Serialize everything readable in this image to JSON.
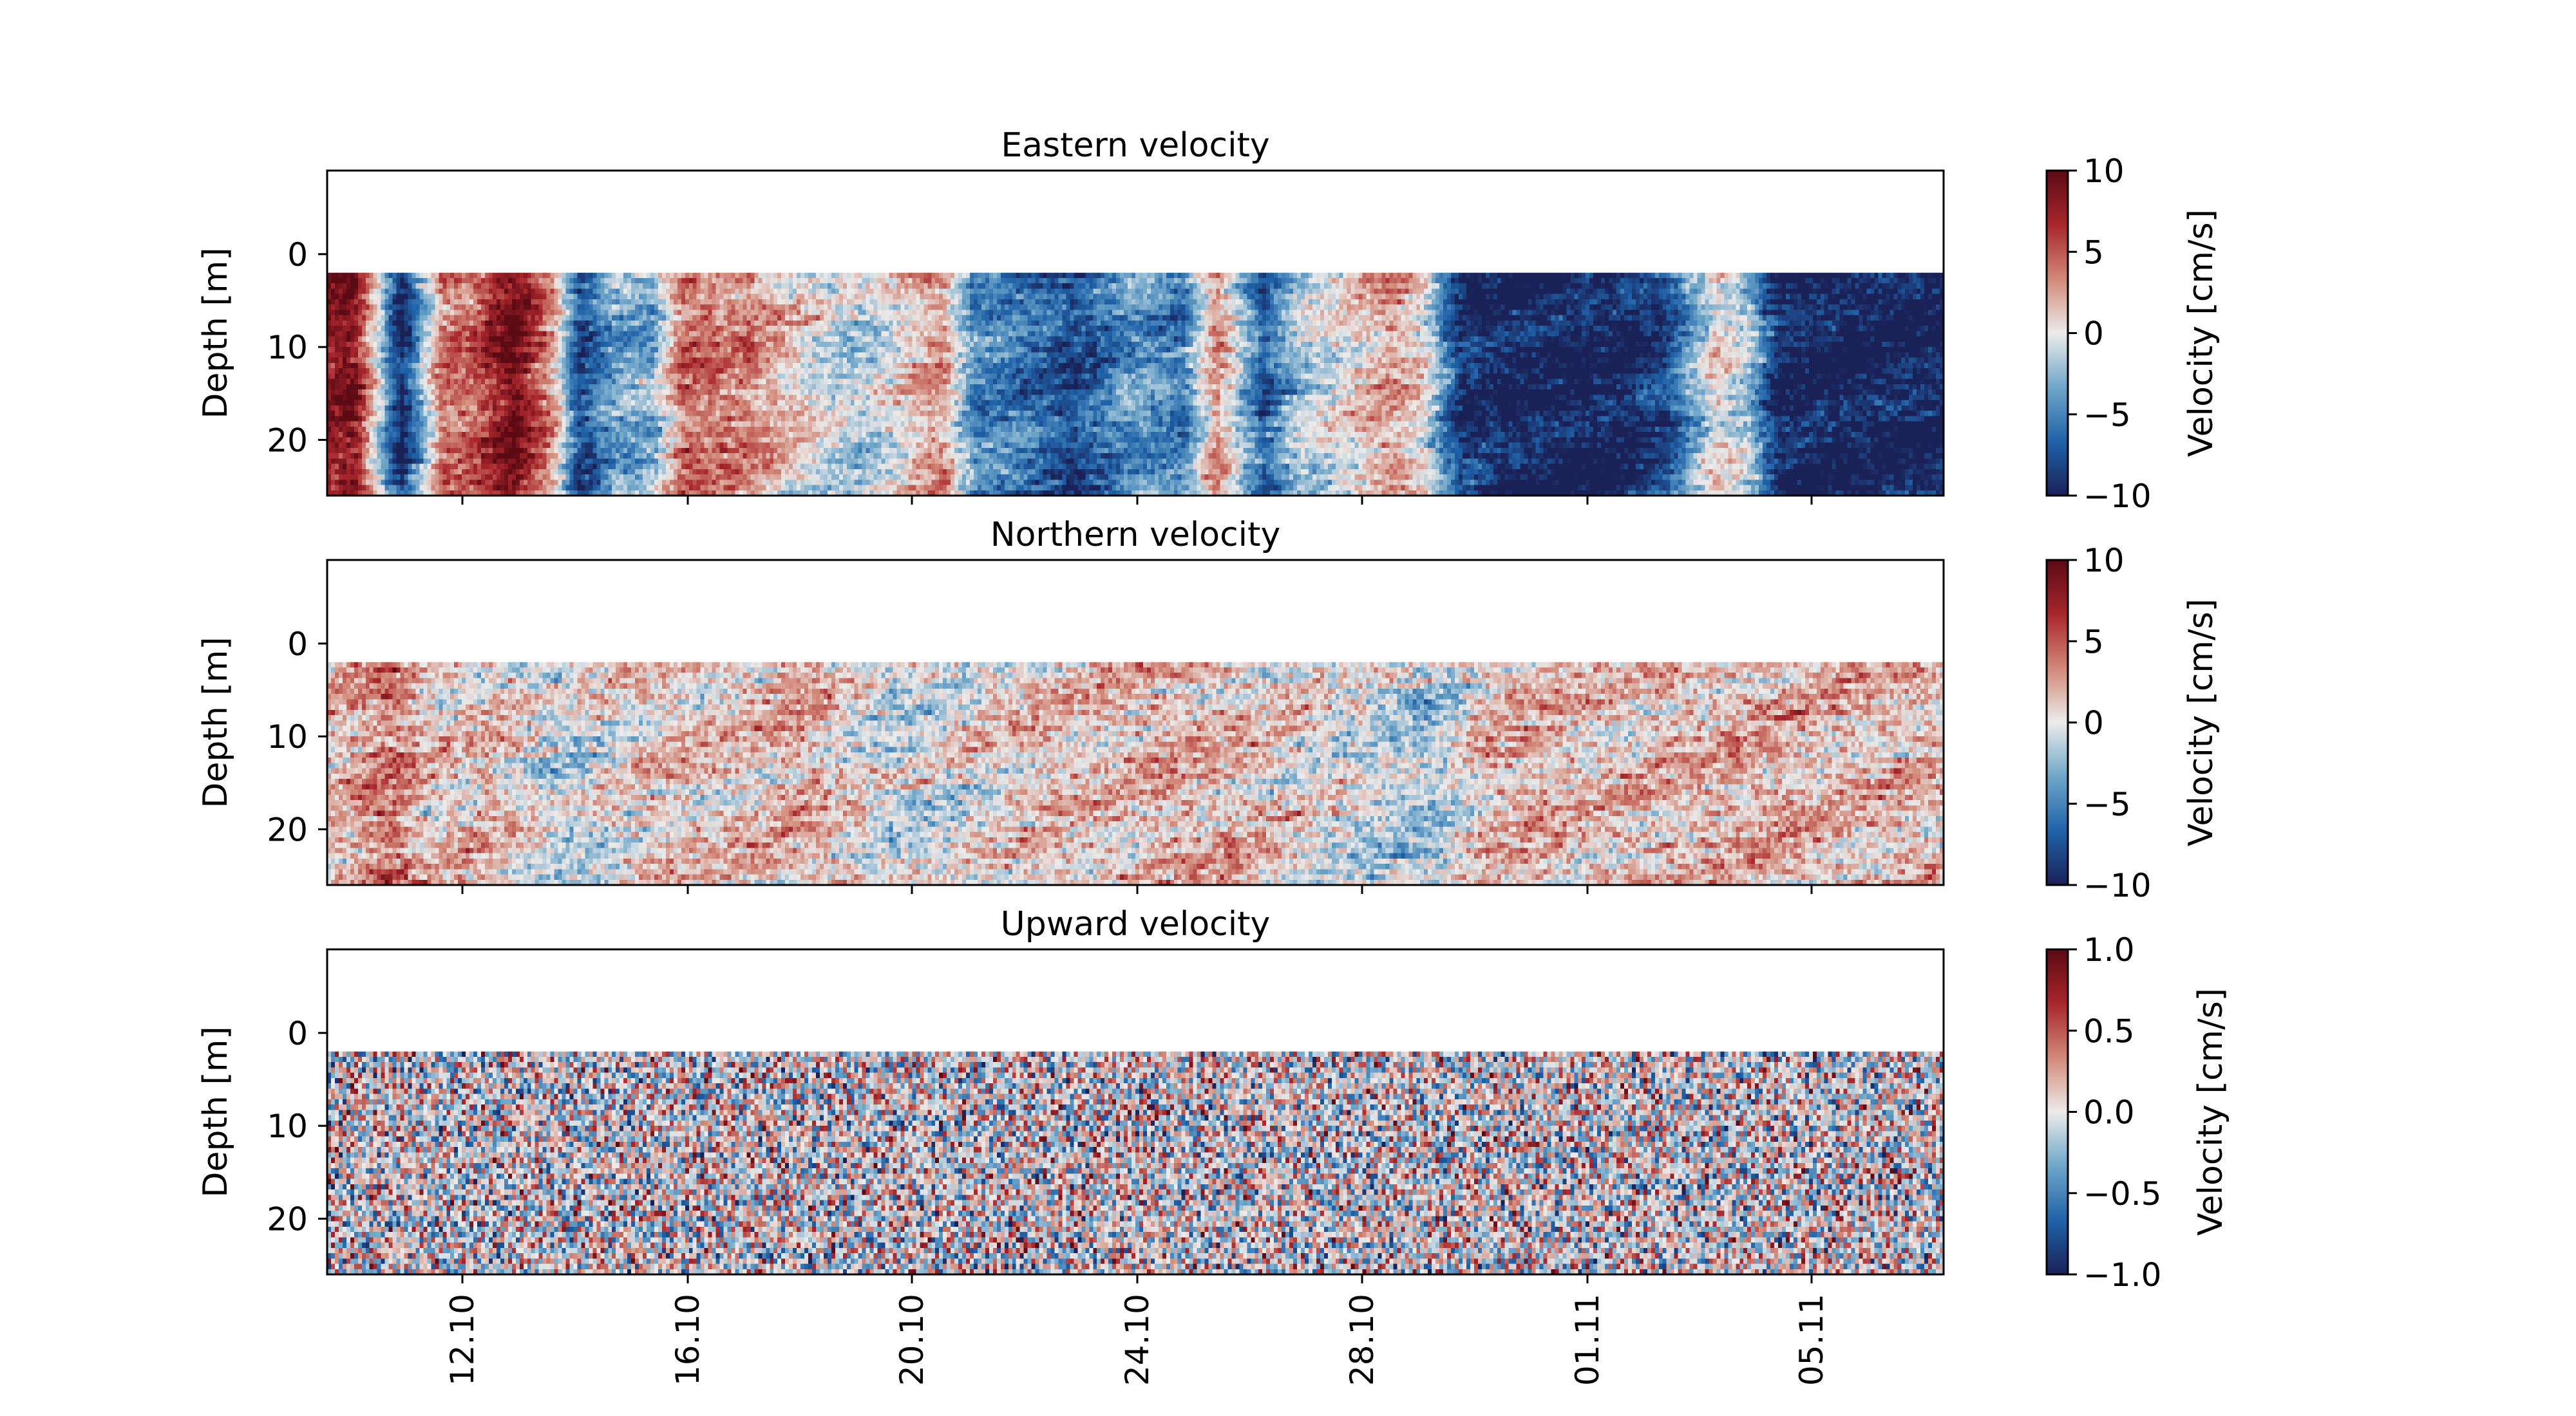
{
  "chart_data": [
    {
      "type": "heatmap",
      "title": "Eastern velocity",
      "xlabel": "",
      "ylabel": "Depth [m]",
      "ylim": [
        26,
        -9
      ],
      "y_ticks": [
        0,
        10,
        20
      ],
      "y_tick_labels": [
        "0",
        "10",
        "20"
      ],
      "data_depth_range": [
        2,
        26
      ],
      "x_tick_labels": [
        "12.10",
        "16.10",
        "20.10",
        "24.10",
        "28.10",
        "01.11",
        "05.11"
      ],
      "colorbar": {
        "label": "Velocity [cm/s]",
        "range": [
          -10,
          10
        ],
        "ticks": [
          10,
          5,
          0,
          -5,
          -10
        ],
        "tick_labels": [
          "10",
          "5",
          "0",
          "−5",
          "−10"
        ]
      },
      "colormap": [
        "#1a2157",
        "#1f62a8",
        "#6fa6c9",
        "#ecebea",
        "#d28878",
        "#a8262c",
        "#5c0a14"
      ],
      "time_profile": [
        [
          0.0,
          0.8
        ],
        [
          0.015,
          0.9
        ],
        [
          0.045,
          -1.0
        ],
        [
          0.07,
          0.4
        ],
        [
          0.09,
          0.5
        ],
        [
          0.115,
          1.0
        ],
        [
          0.14,
          0.2
        ],
        [
          0.155,
          -0.8
        ],
        [
          0.175,
          -0.35
        ],
        [
          0.2,
          -0.3
        ],
        [
          0.22,
          0.45
        ],
        [
          0.26,
          0.35
        ],
        [
          0.3,
          0.0
        ],
        [
          0.33,
          -0.15
        ],
        [
          0.36,
          0.1
        ],
        [
          0.38,
          0.3
        ],
        [
          0.4,
          -0.45
        ],
        [
          0.43,
          -0.55
        ],
        [
          0.46,
          -0.8
        ],
        [
          0.5,
          -0.4
        ],
        [
          0.53,
          -0.55
        ],
        [
          0.55,
          0.35
        ],
        [
          0.58,
          -0.7
        ],
        [
          0.6,
          -0.2
        ],
        [
          0.63,
          0.05
        ],
        [
          0.66,
          0.3
        ],
        [
          0.68,
          0.0
        ],
        [
          0.7,
          -0.85
        ],
        [
          0.73,
          -1.0
        ],
        [
          0.8,
          -1.0
        ],
        [
          0.83,
          -0.8
        ],
        [
          0.86,
          0.1
        ],
        [
          0.88,
          -0.15
        ],
        [
          0.9,
          -1.0
        ],
        [
          1.0,
          -1.0
        ]
      ],
      "noise": 0.35
    },
    {
      "type": "heatmap",
      "title": "Northern velocity",
      "xlabel": "",
      "ylabel": "Depth [m]",
      "ylim": [
        26,
        -9
      ],
      "y_ticks": [
        0,
        10,
        20
      ],
      "y_tick_labels": [
        "0",
        "10",
        "20"
      ],
      "data_depth_range": [
        2,
        26
      ],
      "x_tick_labels": [
        "12.10",
        "16.10",
        "20.10",
        "24.10",
        "28.10",
        "01.11",
        "05.11"
      ],
      "colorbar": {
        "label": "Velocity [cm/s]",
        "range": [
          -10,
          10
        ],
        "ticks": [
          10,
          5,
          0,
          -5,
          -10
        ],
        "tick_labels": [
          "10",
          "5",
          "0",
          "−5",
          "−10"
        ]
      },
      "colormap": [
        "#1a2157",
        "#1f62a8",
        "#6fa6c9",
        "#ecebea",
        "#d28878",
        "#a8262c",
        "#5c0a14"
      ],
      "time_profile": [
        [
          0.0,
          0.15
        ],
        [
          0.04,
          0.45
        ],
        [
          0.06,
          0.1
        ],
        [
          0.1,
          0.15
        ],
        [
          0.14,
          -0.1
        ],
        [
          0.2,
          0.1
        ],
        [
          0.3,
          0.2
        ],
        [
          0.35,
          -0.1
        ],
        [
          0.45,
          0.15
        ],
        [
          0.55,
          0.2
        ],
        [
          0.62,
          0.0
        ],
        [
          0.68,
          -0.2
        ],
        [
          0.72,
          0.2
        ],
        [
          0.8,
          0.15
        ],
        [
          0.9,
          0.2
        ],
        [
          1.0,
          0.15
        ]
      ],
      "noise": 0.45
    },
    {
      "type": "heatmap",
      "title": "Upward velocity",
      "xlabel": "",
      "ylabel": "Depth [m]",
      "ylim": [
        26,
        -9
      ],
      "y_ticks": [
        0,
        10,
        20
      ],
      "y_tick_labels": [
        "0",
        "10",
        "20"
      ],
      "data_depth_range": [
        2,
        26
      ],
      "x_tick_labels": [
        "12.10",
        "16.10",
        "20.10",
        "24.10",
        "28.10",
        "01.11",
        "05.11"
      ],
      "colorbar": {
        "label": "Velocity [cm/s]",
        "range": [
          -1.0,
          1.0
        ],
        "ticks": [
          1.0,
          0.5,
          0.0,
          -0.5,
          -1.0
        ],
        "tick_labels": [
          "1.0",
          "0.5",
          "0.0",
          "−0.5",
          "−1.0"
        ]
      },
      "colormap": [
        "#1a2157",
        "#1f62a8",
        "#6fa6c9",
        "#ecebea",
        "#d28878",
        "#a8262c",
        "#5c0a14"
      ],
      "time_profile": [
        [
          0.0,
          0.0
        ],
        [
          1.0,
          0.0
        ]
      ],
      "noise": 1.0
    }
  ]
}
